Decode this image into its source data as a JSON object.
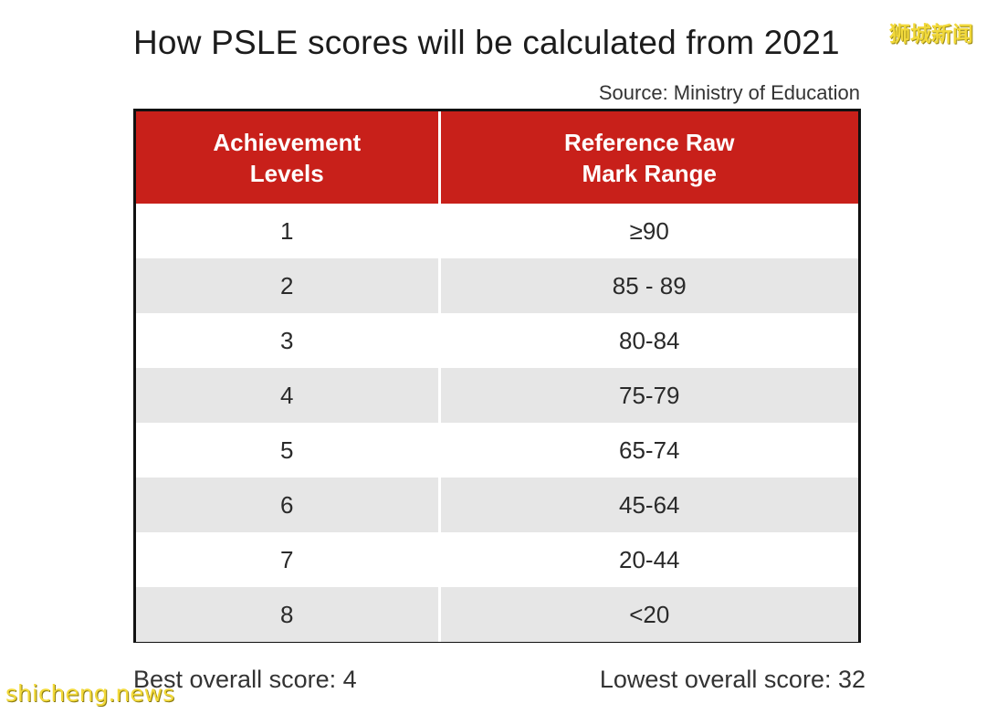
{
  "title": "How PSLE scores will be calculated from 2021",
  "source": "Source: Ministry of Education",
  "watermarks": {
    "top_right": "狮城新闻",
    "bottom_left": "shicheng.news"
  },
  "table": {
    "headers": [
      {
        "line1": "Achievement",
        "line2": "Levels"
      },
      {
        "line1": "Reference Raw",
        "line2": "Mark Range"
      }
    ],
    "rows": [
      {
        "level": "1",
        "range": "≥90"
      },
      {
        "level": "2",
        "range": "85 - 89"
      },
      {
        "level": "3",
        "range": "80-84"
      },
      {
        "level": "4",
        "range": "75-79"
      },
      {
        "level": "5",
        "range": "65-74"
      },
      {
        "level": "6",
        "range": "45-64"
      },
      {
        "level": "7",
        "range": "20-44"
      },
      {
        "level": "8",
        "range": "<20"
      }
    ]
  },
  "footer": {
    "best": "Best overall score: 4",
    "lowest": "Lowest overall score: 32"
  },
  "colors": {
    "header_bg": "#c8201a",
    "stripe_bg": "#e6e6e6",
    "border": "#111111",
    "watermark": "#f2d93a"
  }
}
